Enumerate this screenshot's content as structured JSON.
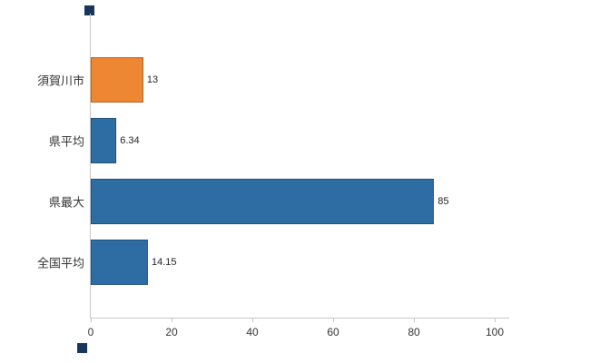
{
  "chart_data": {
    "type": "bar",
    "orientation": "horizontal",
    "title": "",
    "xlabel": "",
    "ylabel": "",
    "categories": [
      "須賀川市",
      "県平均",
      "県最大",
      "全国平均"
    ],
    "values": [
      13,
      6.34,
      85,
      14.15
    ],
    "xlim": [
      0,
      100
    ],
    "x_ticks": [
      0,
      20,
      40,
      60,
      80,
      100
    ],
    "grid": "off",
    "legend": "none",
    "bar_colors": [
      "#ED8733",
      "#2E6DA3",
      "#2E6DA3",
      "#2E6DA3"
    ]
  },
  "bars": [
    {
      "label": "須賀川市",
      "value": 13,
      "value_label": "13",
      "color": "#ED8733"
    },
    {
      "label": "県平均",
      "value": 6.34,
      "value_label": "6.34",
      "color": "#2E6DA3"
    },
    {
      "label": "県最大",
      "value": 85,
      "value_label": "85",
      "color": "#2E6DA3"
    },
    {
      "label": "全国平均",
      "value": 14.15,
      "value_label": "14.15",
      "color": "#2E6DA3"
    }
  ],
  "axis": {
    "tick_labels": [
      "0",
      "20",
      "40",
      "60",
      "80",
      "100"
    ]
  }
}
